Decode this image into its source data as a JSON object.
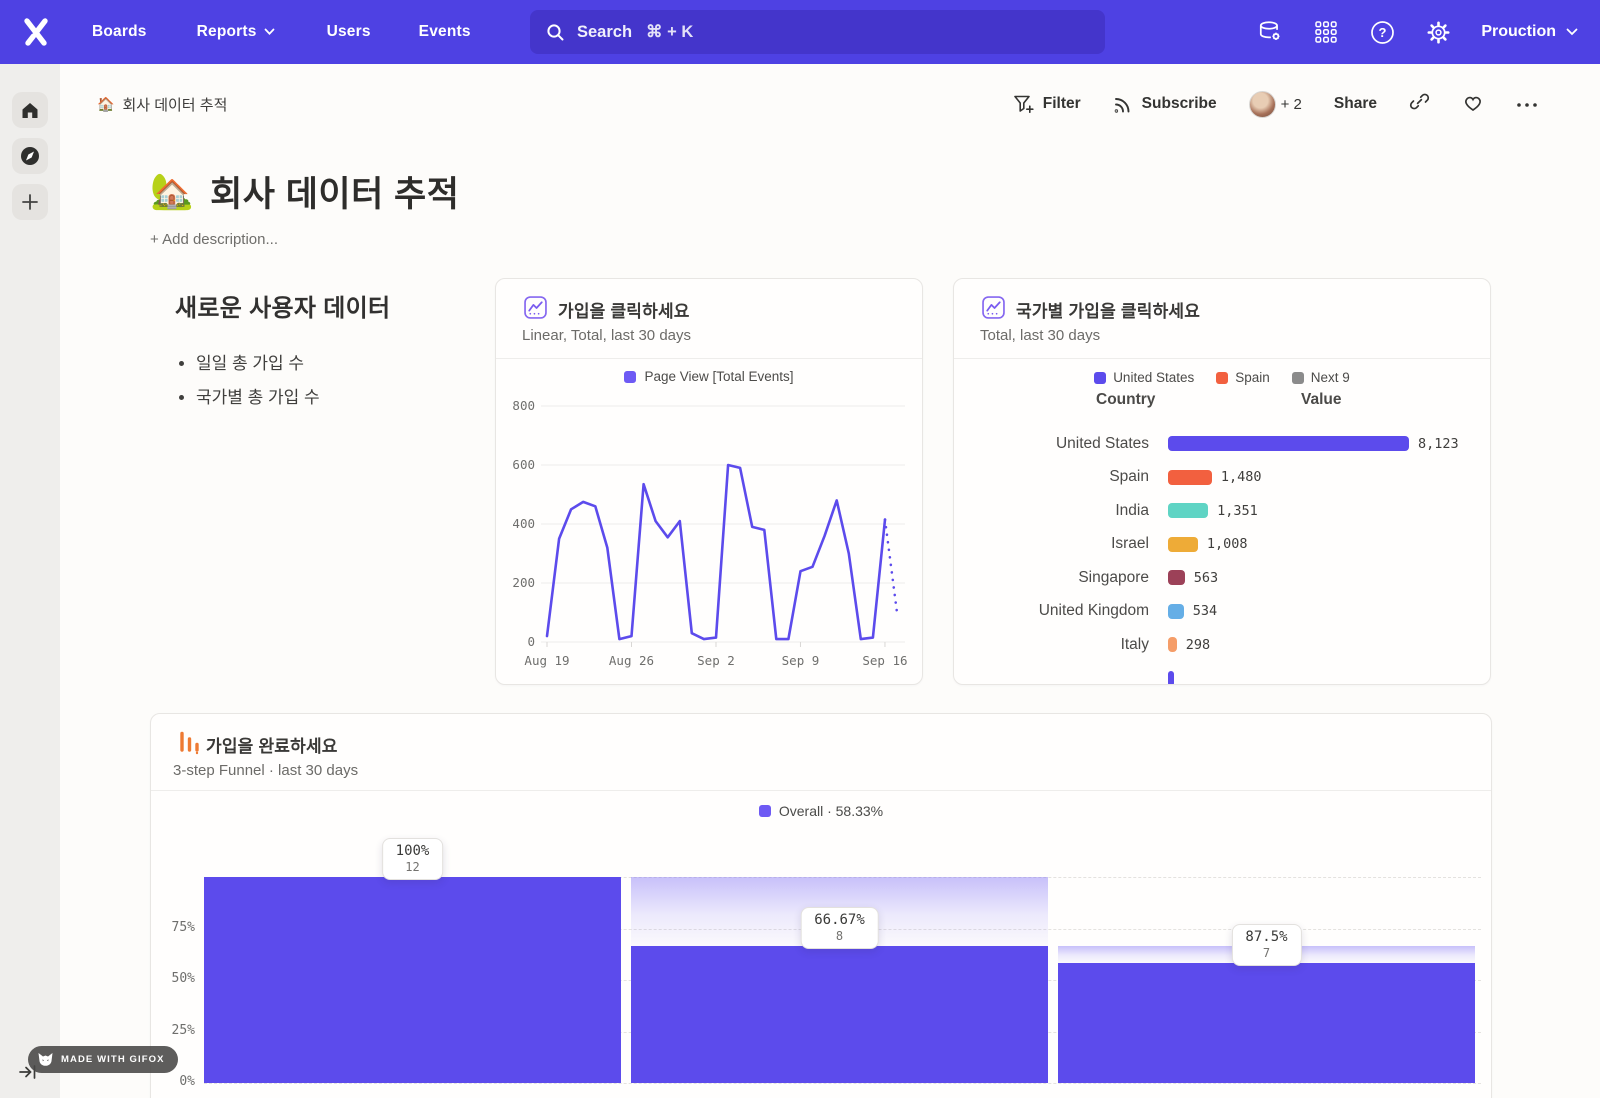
{
  "nav": {
    "brand": "Mixpanel",
    "items": [
      {
        "label": "Boards"
      },
      {
        "label": "Reports"
      },
      {
        "label": "Users"
      },
      {
        "label": "Events"
      }
    ],
    "search": {
      "label": "Search",
      "shortcut": "⌘ + K"
    },
    "project_label": "Prouction"
  },
  "breadcrumb": {
    "emoji": "🏠",
    "title": "회사 데이터 추적"
  },
  "header_actions": {
    "filter": "Filter",
    "subscribe": "Subscribe",
    "collaborators": "+ 2",
    "share": "Share"
  },
  "page": {
    "emoji": "🏡",
    "title": "회사 데이터 추적",
    "add_description": "+ Add description..."
  },
  "text_card": {
    "heading": "새로운 사용자 데이터",
    "bullets": [
      "일일 총 가입 수",
      "국가별 총 가입 수"
    ]
  },
  "colors": {
    "accent": "#5c4bec",
    "legend_square": "#6e5af4",
    "nav": "#4e41e3",
    "spain": "#f2603f",
    "india": "#5fd4c4",
    "israel": "#eeab37",
    "singapore": "#9c4158",
    "united_kingdom": "#65aee6",
    "italy": "#f59d68",
    "next9": "#8b8b8b"
  },
  "chart_data": [
    {
      "type": "line",
      "title": "가입을 클릭하세요",
      "subtitle": "Linear, Total, last 30 days",
      "legend": [
        {
          "name": "Page View [Total Events]",
          "color": "#6e5af4"
        }
      ],
      "x_tick_labels": [
        "Aug 19",
        "Aug 26",
        "Sep 2",
        "Sep 9",
        "Sep 16"
      ],
      "x_tick_indices": [
        0,
        7,
        14,
        21,
        28
      ],
      "y_ticks": [
        0,
        200,
        400,
        600,
        800
      ],
      "ylim": [
        0,
        800
      ],
      "values": [
        20,
        350,
        450,
        475,
        460,
        320,
        10,
        20,
        535,
        410,
        355,
        410,
        30,
        10,
        15,
        600,
        590,
        390,
        380,
        10,
        10,
        240,
        255,
        360,
        480,
        300,
        10,
        15,
        415
      ],
      "incomplete_tail_value": 100
    },
    {
      "type": "bar",
      "title": "국가별 가입을 클릭하세요",
      "subtitle": "Total, last 30 days",
      "legend": [
        {
          "name": "United States",
          "color": "#5c4bec"
        },
        {
          "name": "Spain",
          "color": "#f2603f"
        },
        {
          "name": "Next 9",
          "color": "#8b8b8b"
        }
      ],
      "columns": {
        "country": "Country",
        "value": "Value"
      },
      "max": 8123,
      "rows": [
        {
          "country": "United States",
          "value": "8,123",
          "num": 8123,
          "color": "#5c4bec"
        },
        {
          "country": "Spain",
          "value": "1,480",
          "num": 1480,
          "color": "#f2603f"
        },
        {
          "country": "India",
          "value": "1,351",
          "num": 1351,
          "color": "#5fd4c4"
        },
        {
          "country": "Israel",
          "value": "1,008",
          "num": 1008,
          "color": "#eeab37"
        },
        {
          "country": "Singapore",
          "value": "563",
          "num": 563,
          "color": "#9c4158"
        },
        {
          "country": "United Kingdom",
          "value": "534",
          "num": 534,
          "color": "#65aee6"
        },
        {
          "country": "Italy",
          "value": "298",
          "num": 298,
          "color": "#f59d68"
        },
        {
          "country": "",
          "value": "",
          "num": 200,
          "color": "#5c4bec"
        }
      ]
    },
    {
      "type": "funnel",
      "title": "가입을 완료하세요",
      "subtitle": "3-step Funnel · last 30 days",
      "legend": "Overall · 58.33%",
      "y_tick_labels": [
        "75%",
        "50%",
        "25%",
        "0%"
      ],
      "y_tick_pcts": [
        75,
        50,
        25,
        0
      ],
      "steps": [
        {
          "overall_pct": 100,
          "pct_label": "100%",
          "count": "12",
          "prev_overall_pct": 100
        },
        {
          "overall_pct": 66.67,
          "pct_label": "66.67%",
          "count": "8",
          "prev_overall_pct": 100
        },
        {
          "overall_pct": 58.33,
          "pct_label": "87.5%",
          "count": "7",
          "prev_overall_pct": 66.67
        }
      ]
    }
  ],
  "badge": {
    "label": "MADE WITH GIFOX"
  }
}
